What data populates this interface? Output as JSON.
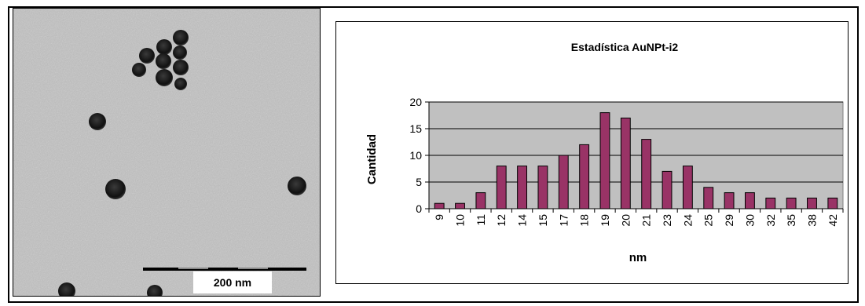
{
  "micrograph": {
    "scale_label": "200 nm"
  },
  "chart_data": {
    "type": "bar",
    "title": "Estadística AuNPt-i2",
    "xlabel": "nm",
    "ylabel": "Cantidad",
    "categories": [
      "9",
      "10",
      "11",
      "12",
      "14",
      "15",
      "17",
      "18",
      "19",
      "20",
      "21",
      "23",
      "24",
      "25",
      "29",
      "30",
      "32",
      "35",
      "38",
      "42"
    ],
    "values": [
      1,
      1,
      3,
      8,
      8,
      8,
      10,
      12,
      18,
      17,
      13,
      7,
      8,
      4,
      3,
      3,
      2,
      2,
      2,
      2
    ],
    "yticks": [
      0,
      5,
      10,
      15,
      20
    ],
    "ylim": [
      0,
      20
    ],
    "grid": true,
    "legend": "none",
    "colors": {
      "bar": "#993366",
      "plot_bg": "#c0c0c0"
    }
  }
}
